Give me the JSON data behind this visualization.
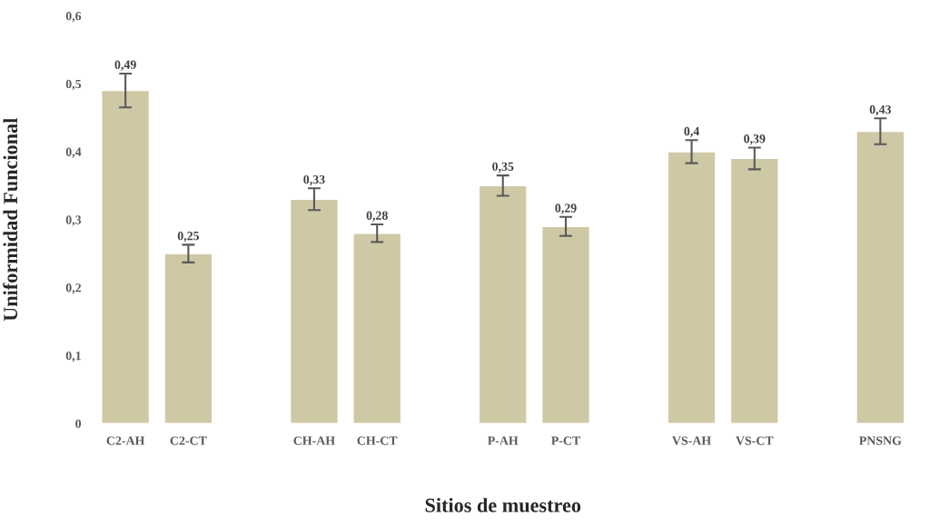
{
  "chart_data": {
    "type": "bar",
    "xlabel": "Sitios de muestreo",
    "ylabel": "Uniformidad Funcional",
    "categories": [
      "C2-AH",
      "C2-CT",
      null,
      "CH-AH",
      "CH-CT",
      null,
      "P-AH",
      "P-CT",
      null,
      "VS-AH",
      "VS-CT",
      null,
      "PNSNG"
    ],
    "values": [
      0.49,
      0.25,
      null,
      0.33,
      0.28,
      null,
      0.35,
      0.29,
      null,
      0.4,
      0.39,
      null,
      0.43
    ],
    "errors": [
      0.025,
      0.013,
      null,
      0.016,
      0.013,
      null,
      0.015,
      0.014,
      null,
      0.017,
      0.016,
      null,
      0.019
    ],
    "value_labels": [
      "0,49",
      "0,25",
      null,
      "0,33",
      "0,28",
      null,
      "0,35",
      "0,29",
      null,
      "0,4",
      "0,39",
      null,
      "0,43"
    ],
    "color": "#cfc8a5",
    "ylim": [
      0,
      0.6
    ],
    "yticks": [
      0,
      {
        "value": 0.1,
        "label": "0,1"
      },
      {
        "value": 0.2,
        "label": "0,2"
      },
      {
        "value": 0.3,
        "label": "0,3"
      },
      {
        "value": 0.4,
        "label": "0,4"
      },
      {
        "value": 0.5,
        "label": "0,5"
      },
      {
        "value": 0.6,
        "label": "0,6"
      }
    ],
    "grid": false,
    "legend": false
  }
}
